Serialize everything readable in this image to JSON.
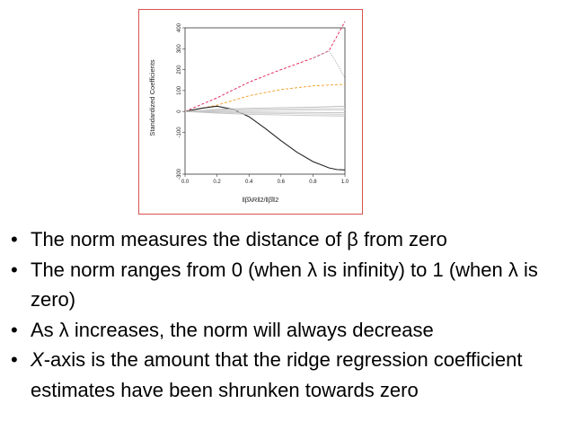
{
  "chart_data": {
    "type": "line",
    "xlabel": "‖β̂λR‖2/‖β̂‖2",
    "ylabel": "Standardized Coefficients",
    "xlim": [
      0,
      1
    ],
    "ylim": [
      -300,
      400
    ],
    "x_ticks": [
      "0.0",
      "0.2",
      "0.4",
      "0.6",
      "0.8",
      "1.0"
    ],
    "y_ticks": [
      "-300",
      "-100",
      "0",
      "100",
      "200",
      "300",
      "400"
    ],
    "grid": false,
    "series": [
      {
        "style": "dashed",
        "color": "#e0194f",
        "x": [
          0,
          0.2,
          0.4,
          0.6,
          0.8,
          0.9,
          1.0
        ],
        "y": [
          0,
          65,
          140,
          200,
          255,
          290,
          430
        ]
      },
      {
        "style": "dashed",
        "color": "#f29a1f",
        "x": [
          0,
          0.2,
          0.4,
          0.6,
          0.8,
          1.0
        ],
        "y": [
          0,
          30,
          75,
          105,
          122,
          130
        ]
      },
      {
        "style": "dotted",
        "color": "#9a9a9a",
        "x": [
          0.8,
          0.9,
          0.95,
          1.0
        ],
        "y": [
          255,
          290,
          230,
          160
        ]
      },
      {
        "style": "solid",
        "color": "#222222",
        "x": [
          0,
          0.1,
          0.2,
          0.3,
          0.4,
          0.5,
          0.6,
          0.7,
          0.8,
          0.9,
          0.95,
          1.0
        ],
        "y": [
          0,
          15,
          25,
          10,
          -25,
          -80,
          -140,
          -195,
          -240,
          -270,
          -278,
          -280
        ]
      },
      {
        "style": "solid",
        "color": "#bdbdbd",
        "x": [
          0,
          0.2,
          0.4,
          0.6,
          0.8,
          1.0
        ],
        "y": [
          0,
          10,
          15,
          18,
          20,
          25
        ]
      },
      {
        "style": "solid",
        "color": "#c8c8c8",
        "x": [
          0,
          0.2,
          0.4,
          0.6,
          0.8,
          1.0
        ],
        "y": [
          0,
          6,
          9,
          11,
          12,
          14
        ]
      },
      {
        "style": "solid",
        "color": "#cccccc",
        "x": [
          0,
          0.2,
          0.4,
          0.6,
          0.8,
          1.0
        ],
        "y": [
          0,
          -4,
          -8,
          -10,
          -12,
          -14
        ]
      },
      {
        "style": "solid",
        "color": "#c4c4c4",
        "x": [
          0,
          0.2,
          0.4,
          0.6,
          0.8,
          1.0
        ],
        "y": [
          0,
          -8,
          -14,
          -17,
          -20,
          -22
        ]
      },
      {
        "style": "solid",
        "color": "#d0d0d0",
        "x": [
          0,
          0.2,
          0.4,
          0.6,
          0.8,
          1.0
        ],
        "y": [
          0,
          3,
          4,
          5,
          6,
          7
        ]
      },
      {
        "style": "solid",
        "color": "#c0c0c0",
        "x": [
          0,
          0.2,
          0.4,
          0.6,
          0.8,
          1.0
        ],
        "y": [
          0,
          -2,
          -3,
          -4,
          -5,
          -6
        ]
      }
    ]
  },
  "bullets": {
    "item1": "The norm measures the distance of β from zero",
    "item2": "The norm ranges from 0 (when λ is infinity) to 1 (when λ is zero)",
    "item3": "As λ increases, the norm will always decrease",
    "item4_italic": "X",
    "item4_rest": "-axis is the amount that the ridge regression coefficient estimates have been shrunken towards zero"
  },
  "bullet_symbol": "•",
  "frame_color": "#d9534f"
}
